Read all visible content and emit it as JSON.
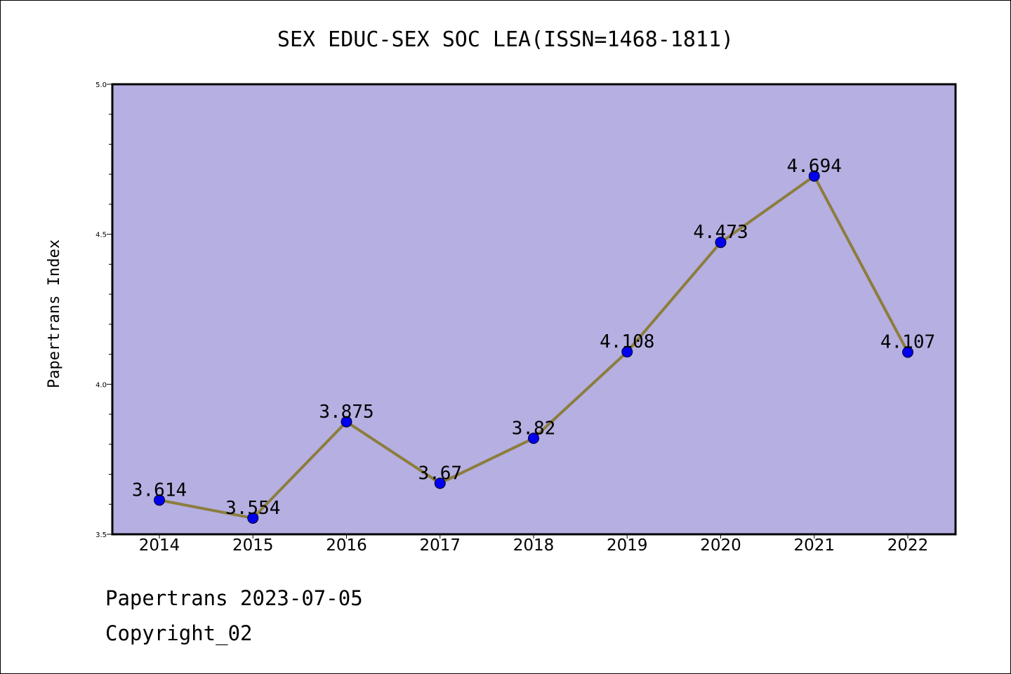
{
  "chart_data": {
    "type": "line",
    "title": "SEX EDUC-SEX SOC LEA(ISSN=1468-1811)",
    "xlabel": "",
    "ylabel": "Papertrans Index",
    "categories": [
      "2014",
      "2015",
      "2016",
      "2017",
      "2018",
      "2019",
      "2020",
      "2021",
      "2022"
    ],
    "values": [
      3.614,
      3.554,
      3.875,
      3.67,
      3.82,
      4.108,
      4.473,
      4.694,
      4.107
    ],
    "value_labels": [
      "3.614",
      "3.554",
      "3.875",
      "3.67",
      "3.82",
      "4.108",
      "4.473",
      "4.694",
      "4.107"
    ],
    "ylim": [
      3.5,
      5.0
    ],
    "yticks": [
      "3.5",
      "4.0",
      "4.5",
      "5.0"
    ],
    "grid": false,
    "colors": {
      "plot_background": "#b5afe2",
      "line": "#8c7d3d",
      "marker": "#0000ee"
    }
  },
  "footer": {
    "line1": "Papertrans 2023-07-05",
    "line2": "Copyright_02"
  }
}
